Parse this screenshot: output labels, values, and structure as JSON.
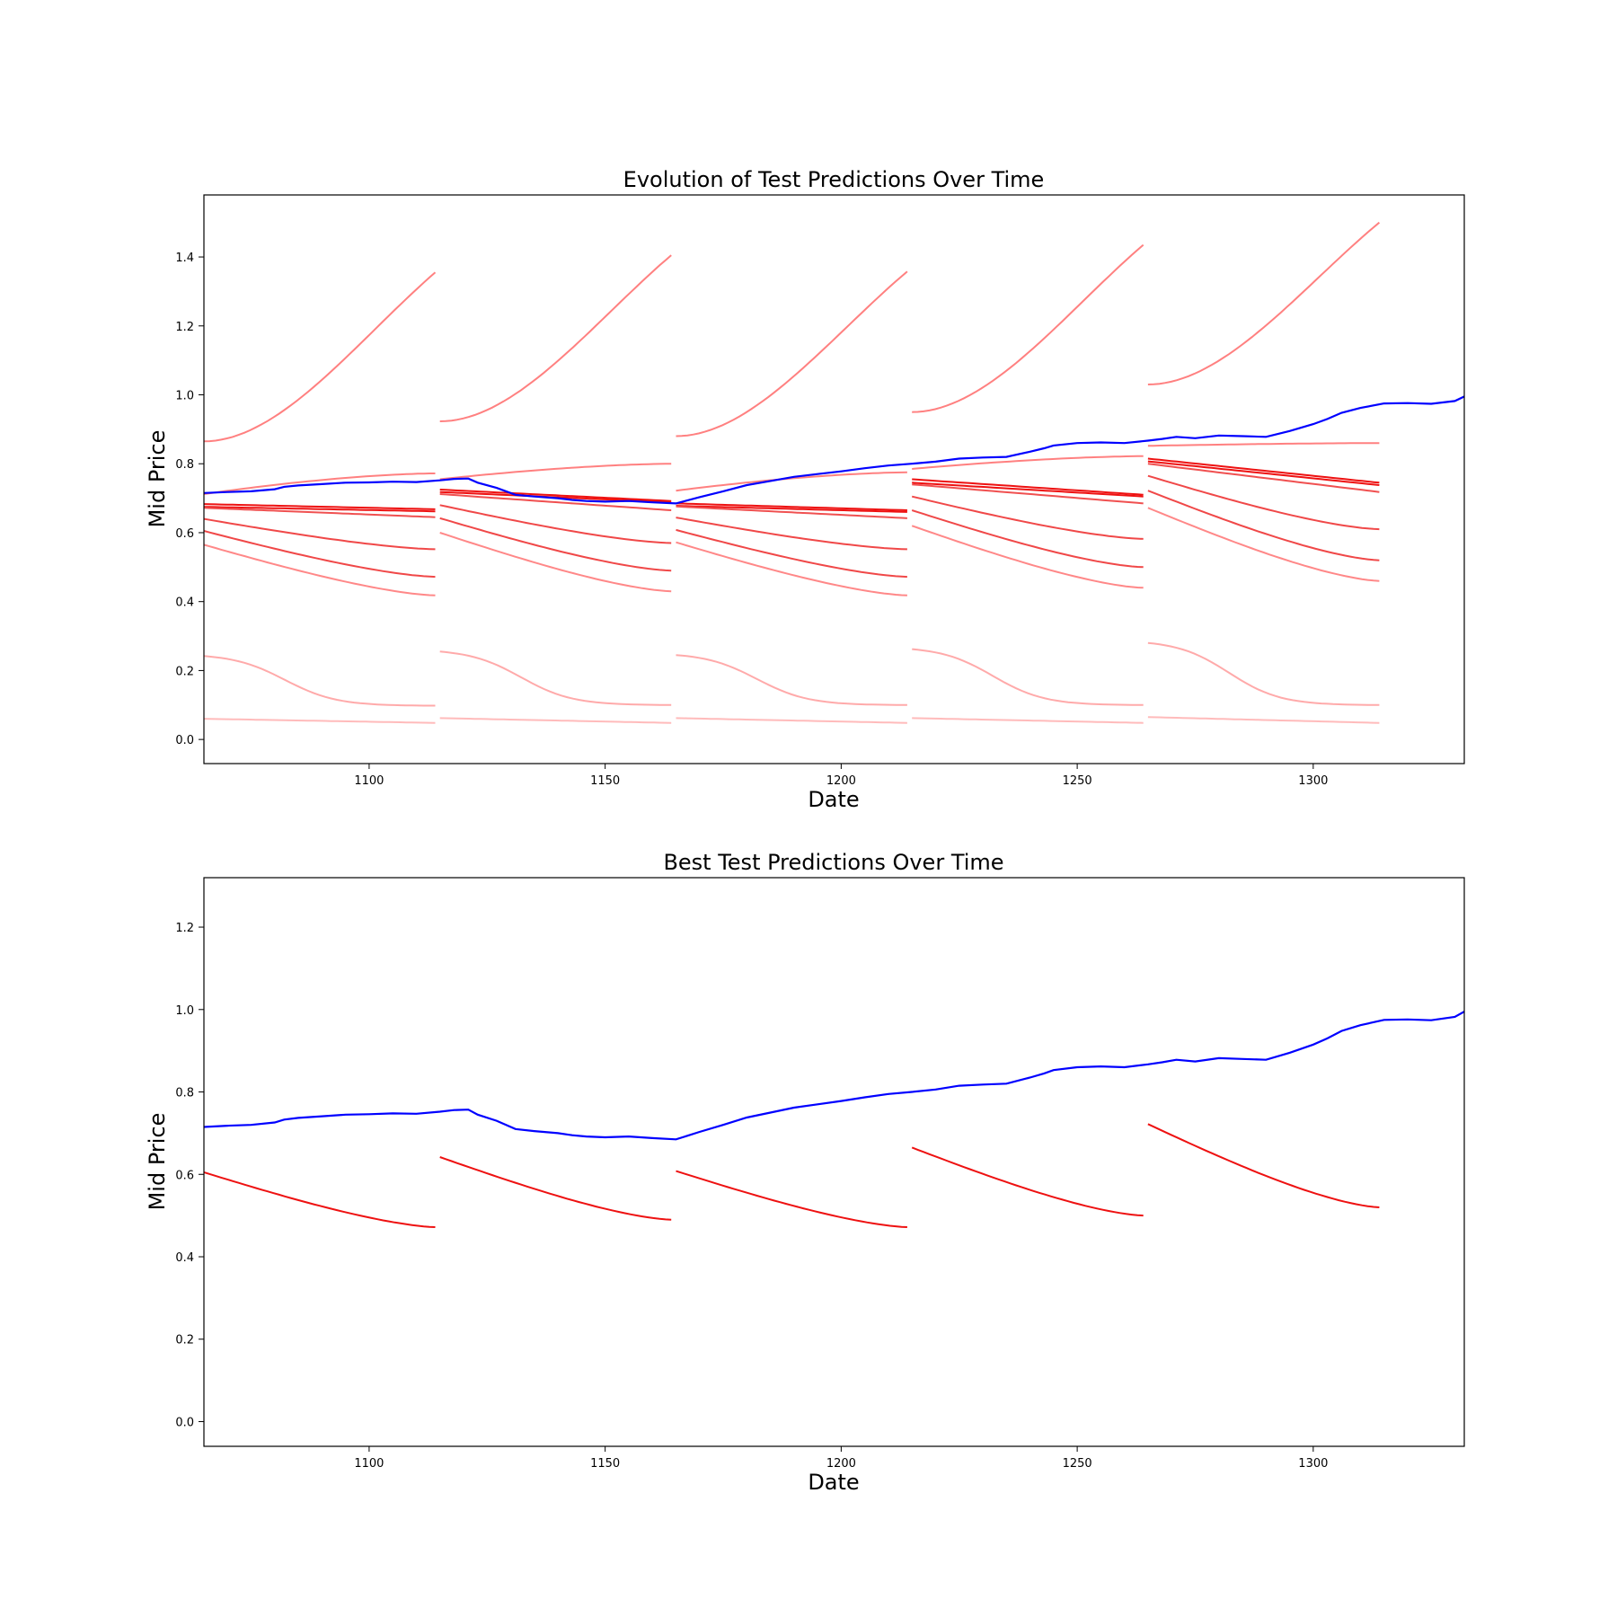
{
  "chart_data": [
    {
      "type": "line",
      "title": "Evolution of Test Predictions Over Time",
      "xlabel": "Date",
      "ylabel": "Mid Price",
      "xlim": [
        1065,
        1332
      ],
      "ylim": [
        -0.07,
        1.58
      ],
      "xticks": [
        "1100",
        "1150",
        "1200",
        "1250",
        "1300"
      ],
      "yticks": [
        "0.0",
        "0.2",
        "0.4",
        "0.6",
        "0.8",
        "1.0",
        "1.2",
        "1.4"
      ],
      "actual": {
        "color": "#0000ff",
        "x": [
          1065,
          1070,
          1075,
          1080,
          1082,
          1085,
          1090,
          1095,
          1100,
          1105,
          1110,
          1115,
          1118,
          1121,
          1123,
          1127,
          1131,
          1135,
          1140,
          1143,
          1146,
          1150,
          1155,
          1160,
          1165,
          1170,
          1175,
          1180,
          1185,
          1190,
          1195,
          1200,
          1205,
          1210,
          1215,
          1220,
          1225,
          1230,
          1235,
          1240,
          1243,
          1245,
          1250,
          1255,
          1260,
          1265,
          1268,
          1271,
          1275,
          1280,
          1285,
          1290,
          1295,
          1300,
          1303,
          1306,
          1310,
          1315,
          1320,
          1325,
          1330,
          1332
        ],
        "y": [
          0.715,
          0.718,
          0.72,
          0.726,
          0.733,
          0.737,
          0.741,
          0.745,
          0.746,
          0.748,
          0.747,
          0.752,
          0.756,
          0.757,
          0.745,
          0.73,
          0.71,
          0.705,
          0.7,
          0.695,
          0.692,
          0.69,
          0.692,
          0.688,
          0.685,
          0.703,
          0.72,
          0.738,
          0.75,
          0.762,
          0.77,
          0.778,
          0.787,
          0.795,
          0.8,
          0.806,
          0.815,
          0.818,
          0.82,
          0.835,
          0.845,
          0.853,
          0.86,
          0.862,
          0.86,
          0.867,
          0.872,
          0.878,
          0.874,
          0.882,
          0.88,
          0.878,
          0.895,
          0.915,
          0.93,
          0.948,
          0.962,
          0.975,
          0.976,
          0.974,
          0.982,
          0.995
        ]
      },
      "windows_x": [
        [
          1065,
          1114
        ],
        [
          1115,
          1164
        ],
        [
          1165,
          1214
        ],
        [
          1215,
          1264
        ],
        [
          1265,
          1314
        ]
      ],
      "predictions": [
        {
          "color": "#ff8080",
          "starts": [
            0.865,
            0.923,
            0.88,
            0.95,
            1.03
          ],
          "ends": [
            1.355,
            1.405,
            1.358,
            1.435,
            1.5
          ],
          "shape": "rise"
        },
        {
          "color": "#ff8080",
          "starts": [
            0.712,
            0.755,
            0.722,
            0.785,
            0.852
          ],
          "ends": [
            0.772,
            0.8,
            0.775,
            0.822,
            0.86
          ],
          "shape": "plateau"
        },
        {
          "color": "#ee1111",
          "starts": [
            0.683,
            0.725,
            0.685,
            0.755,
            0.815
          ],
          "ends": [
            0.668,
            0.692,
            0.665,
            0.71,
            0.745
          ],
          "shape": "linear"
        },
        {
          "color": "#ee1111",
          "starts": [
            0.675,
            0.718,
            0.678,
            0.745,
            0.807
          ],
          "ends": [
            0.662,
            0.688,
            0.66,
            0.705,
            0.738
          ],
          "shape": "linear"
        },
        {
          "color": "#f05050",
          "starts": [
            0.672,
            0.712,
            0.676,
            0.74,
            0.8
          ],
          "ends": [
            0.645,
            0.665,
            0.642,
            0.685,
            0.718
          ],
          "shape": "linear"
        },
        {
          "color": "#f04848",
          "starts": [
            0.64,
            0.68,
            0.644,
            0.705,
            0.765
          ],
          "ends": [
            0.552,
            0.57,
            0.552,
            0.582,
            0.61
          ],
          "shape": "decay"
        },
        {
          "color": "#f04848",
          "starts": [
            0.605,
            0.642,
            0.608,
            0.665,
            0.722
          ],
          "ends": [
            0.472,
            0.49,
            0.472,
            0.5,
            0.52
          ],
          "shape": "decay"
        },
        {
          "color": "#ff8888",
          "starts": [
            0.565,
            0.6,
            0.572,
            0.62,
            0.672
          ],
          "ends": [
            0.418,
            0.43,
            0.418,
            0.44,
            0.46
          ],
          "shape": "decay"
        },
        {
          "color": "#ffaaaa",
          "starts": [
            0.242,
            0.255,
            0.245,
            0.262,
            0.28
          ],
          "ends": [
            0.098,
            0.1,
            0.1,
            0.1,
            0.1
          ],
          "shape": "sigmoid"
        },
        {
          "color": "#ffbbbb",
          "starts": [
            0.06,
            0.062,
            0.062,
            0.062,
            0.065
          ],
          "ends": [
            0.048,
            0.048,
            0.048,
            0.048,
            0.048
          ],
          "shape": "linear"
        }
      ]
    },
    {
      "type": "line",
      "title": "Best Test Predictions Over Time",
      "xlabel": "Date",
      "ylabel": "Mid Price",
      "xlim": [
        1065,
        1332
      ],
      "ylim": [
        -0.06,
        1.32
      ],
      "xticks": [
        "1100",
        "1150",
        "1200",
        "1250",
        "1300"
      ],
      "yticks": [
        "0.0",
        "0.2",
        "0.4",
        "0.6",
        "0.8",
        "1.0",
        "1.2"
      ],
      "actual": {
        "color": "#0000ff",
        "x": [
          1065,
          1070,
          1075,
          1080,
          1082,
          1085,
          1090,
          1095,
          1100,
          1105,
          1110,
          1115,
          1118,
          1121,
          1123,
          1127,
          1131,
          1135,
          1140,
          1143,
          1146,
          1150,
          1155,
          1160,
          1165,
          1170,
          1175,
          1180,
          1185,
          1190,
          1195,
          1200,
          1205,
          1210,
          1215,
          1220,
          1225,
          1230,
          1235,
          1240,
          1243,
          1245,
          1250,
          1255,
          1260,
          1265,
          1268,
          1271,
          1275,
          1280,
          1285,
          1290,
          1295,
          1300,
          1303,
          1306,
          1310,
          1315,
          1320,
          1325,
          1330,
          1332
        ],
        "y": [
          0.715,
          0.718,
          0.72,
          0.726,
          0.733,
          0.737,
          0.741,
          0.745,
          0.746,
          0.748,
          0.747,
          0.752,
          0.756,
          0.757,
          0.745,
          0.73,
          0.71,
          0.705,
          0.7,
          0.695,
          0.692,
          0.69,
          0.692,
          0.688,
          0.685,
          0.703,
          0.72,
          0.738,
          0.75,
          0.762,
          0.77,
          0.778,
          0.787,
          0.795,
          0.8,
          0.806,
          0.815,
          0.818,
          0.82,
          0.835,
          0.845,
          0.853,
          0.86,
          0.862,
          0.86,
          0.867,
          0.872,
          0.878,
          0.874,
          0.882,
          0.88,
          0.878,
          0.895,
          0.915,
          0.93,
          0.948,
          0.962,
          0.975,
          0.976,
          0.974,
          0.982,
          0.995
        ]
      },
      "windows_x": [
        [
          1065,
          1114
        ],
        [
          1115,
          1164
        ],
        [
          1165,
          1214
        ],
        [
          1215,
          1264
        ],
        [
          1265,
          1314
        ]
      ],
      "predictions": [
        {
          "color": "#ee1111",
          "starts": [
            0.605,
            0.642,
            0.608,
            0.665,
            0.722
          ],
          "ends": [
            0.472,
            0.49,
            0.472,
            0.5,
            0.52
          ],
          "shape": "decay"
        }
      ]
    }
  ]
}
